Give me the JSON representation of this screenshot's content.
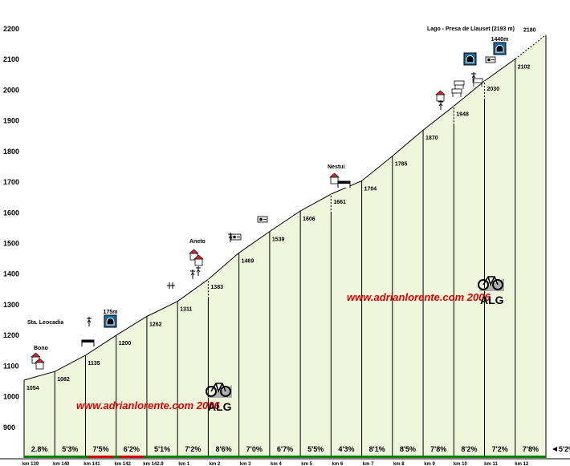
{
  "chart_data": {
    "type": "area",
    "title": "",
    "xlabel": "",
    "ylabel": "",
    "ylim": [
      800,
      2200
    ],
    "yticks": [
      900,
      1000,
      1100,
      1200,
      1300,
      1400,
      1500,
      1600,
      1700,
      1800,
      1900,
      2000,
      2100,
      2200
    ],
    "x_categories": [
      "km 139",
      "km 140",
      "km 141",
      "km 142",
      "km 142.9",
      "km 1",
      "km 2",
      "km 3",
      "km 4",
      "km 5",
      "km 6",
      "km 7",
      "km 8",
      "km 9",
      "km 10",
      "km 11",
      "km 12"
    ],
    "elevation_profile": [
      1054,
      1082,
      1135,
      1200,
      1262,
      1311,
      1383,
      1469,
      1539,
      1606,
      1661,
      1704,
      1785,
      1870,
      1948,
      2030,
      2102,
      2180
    ],
    "segment_gradients": [
      "2.8%",
      "5'3%",
      "7'5%",
      "6'2%",
      "5'1%",
      "7'2%",
      "8'6%",
      "7'0%",
      "6'7%",
      "5'5%",
      "4'3%",
      "8'1%",
      "8'5%",
      "7'8%",
      "8'2%",
      "7'2%",
      "7'8%"
    ],
    "final_gradient": "5'2%",
    "places": [
      {
        "name": "Bono",
        "elevation": 1082
      },
      {
        "name": "Sta. Leocadia",
        "elevation": 1135
      },
      {
        "name": "Aneto",
        "elevation": 1383
      },
      {
        "name": "Nestui",
        "elevation": 1704
      },
      {
        "name": "Lago - Presa de Llauset (2193 m)",
        "elevation": 2180
      }
    ],
    "tunnels": [
      {
        "label": "175m",
        "elevation": 1200
      },
      {
        "label": "1440m",
        "elevation": 2102
      }
    ],
    "watermark": "www.adrianlorente.com 2006",
    "logo_text": "ALG",
    "colors": {
      "fill": "#f0f6dc",
      "line": "#000000",
      "watermark": "#e00000",
      "baseline": "#008000",
      "tunnel": "#1a6aa8"
    },
    "grid": false
  }
}
